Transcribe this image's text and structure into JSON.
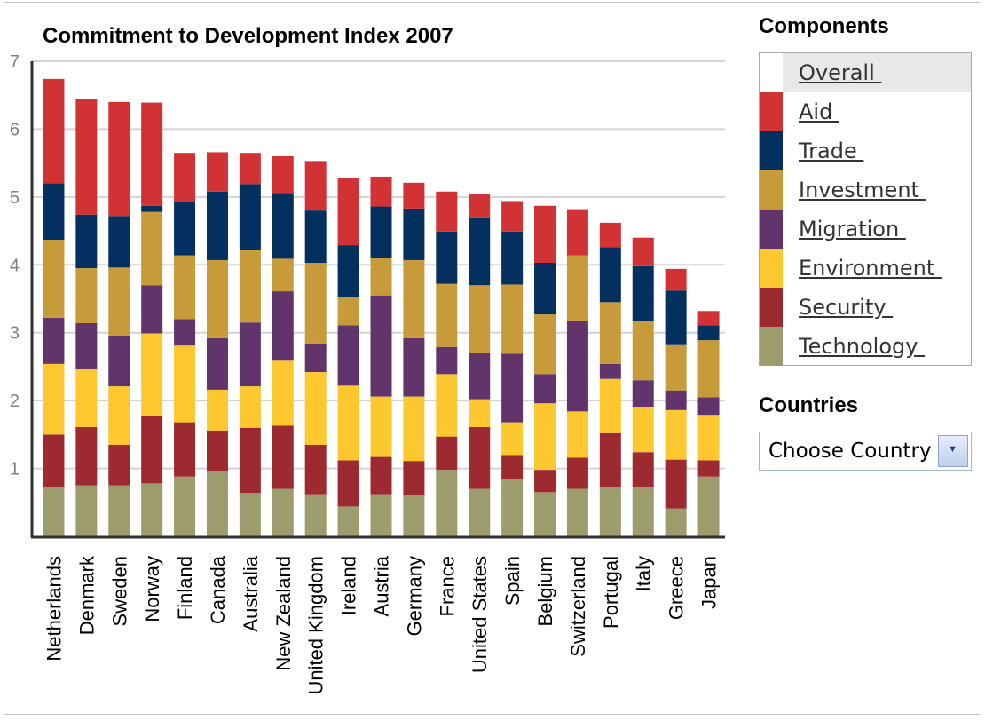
{
  "chart_data": {
    "type": "bar",
    "stacked": true,
    "title": "Commitment to Development Index 2007",
    "xlabel": "",
    "ylabel": "",
    "ylim": [
      0,
      7
    ],
    "yticks": [
      "1",
      "2",
      "3",
      "4",
      "5",
      "6",
      "7"
    ],
    "grid": true,
    "categories": [
      "Netherlands",
      "Denmark",
      "Sweden",
      "Norway",
      "Finland",
      "Canada",
      "Australia",
      "New Zealand",
      "United Kingdom",
      "Ireland",
      "Austria",
      "Germany",
      "France",
      "United States",
      "Spain",
      "Belgium",
      "Switzerland",
      "Portugal",
      "Italy",
      "Greece",
      "Japan"
    ],
    "series": [
      {
        "name": "Technology",
        "color": "#9c9c6c",
        "values": [
          0.73,
          0.75,
          0.75,
          0.78,
          0.88,
          0.96,
          0.64,
          0.7,
          0.62,
          0.44,
          0.62,
          0.6,
          0.98,
          0.7,
          0.85,
          0.65,
          0.7,
          0.73,
          0.73,
          0.41,
          0.88
        ]
      },
      {
        "name": "Security",
        "color": "#9c2a30",
        "values": [
          0.77,
          0.86,
          0.6,
          1.0,
          0.8,
          0.6,
          0.96,
          0.93,
          0.73,
          0.68,
          0.55,
          0.51,
          0.49,
          0.91,
          0.35,
          0.33,
          0.46,
          0.79,
          0.51,
          0.72,
          0.24
        ]
      },
      {
        "name": "Environment",
        "color": "#fdc82f",
        "values": [
          1.04,
          0.85,
          0.86,
          1.21,
          1.13,
          0.6,
          0.61,
          0.97,
          1.07,
          1.1,
          0.89,
          0.95,
          0.92,
          0.41,
          0.48,
          0.98,
          0.68,
          0.8,
          0.67,
          0.73,
          0.67
        ]
      },
      {
        "name": "Migration",
        "color": "#61346b",
        "values": [
          0.68,
          0.68,
          0.75,
          0.71,
          0.39,
          0.76,
          0.94,
          1.01,
          0.42,
          0.89,
          1.49,
          0.86,
          0.4,
          0.68,
          1.01,
          0.43,
          1.34,
          0.22,
          0.39,
          0.29,
          0.26
        ]
      },
      {
        "name": "Investment",
        "color": "#c79a3a",
        "values": [
          1.15,
          0.81,
          1.0,
          1.08,
          0.94,
          1.15,
          1.07,
          0.48,
          1.19,
          0.42,
          0.55,
          1.15,
          0.93,
          1.0,
          1.02,
          0.88,
          0.96,
          0.91,
          0.87,
          0.68,
          0.84
        ]
      },
      {
        "name": "Trade",
        "color": "#04305f",
        "values": [
          0.83,
          0.79,
          0.76,
          0.09,
          0.79,
          1.01,
          0.97,
          0.97,
          0.77,
          0.76,
          0.76,
          0.76,
          0.77,
          1.0,
          0.78,
          0.76,
          0.0,
          0.81,
          0.81,
          0.79,
          0.22
        ]
      },
      {
        "name": "Aid",
        "color": "#d13233",
        "values": [
          1.54,
          1.71,
          1.68,
          1.52,
          0.72,
          0.58,
          0.46,
          0.54,
          0.73,
          0.99,
          0.44,
          0.38,
          0.59,
          0.34,
          0.45,
          0.84,
          0.68,
          0.36,
          0.42,
          0.32,
          0.21
        ]
      }
    ],
    "legend_position": "right"
  },
  "components": {
    "title": "Components",
    "items": [
      {
        "label": "Overall ",
        "color": "#ffffff",
        "selected": true
      },
      {
        "label": "Aid ",
        "color": "#d13233"
      },
      {
        "label": "Trade ",
        "color": "#04305f"
      },
      {
        "label": "Investment ",
        "color": "#c79a3a"
      },
      {
        "label": "Migration ",
        "color": "#61346b"
      },
      {
        "label": "Environment ",
        "color": "#fdc82f"
      },
      {
        "label": "Security ",
        "color": "#9c2a30"
      },
      {
        "label": "Technology ",
        "color": "#9c9c6c"
      }
    ]
  },
  "countries": {
    "title": "Countries",
    "select_value": "Choose Country",
    "select_icon": "chevron-down-icon"
  }
}
